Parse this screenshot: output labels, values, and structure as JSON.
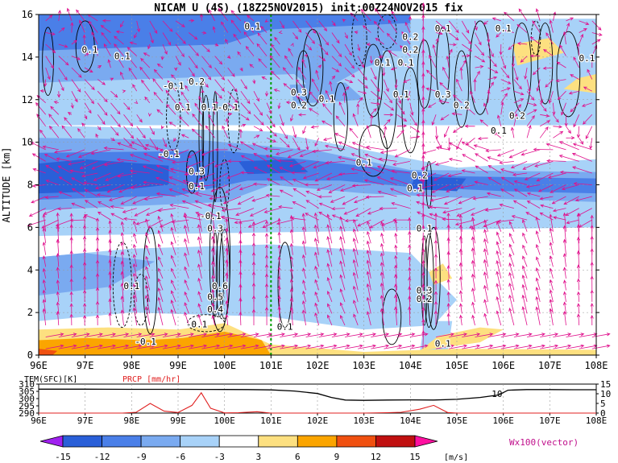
{
  "title": "NICAM U (4S) (18Z25NOV2015) init:00Z24NOV2015 fix",
  "colors": {
    "neg15": "#a020f0",
    "neg12": "#2a5fd8",
    "neg9": "#4a7fe8",
    "neg6": "#7aaaf0",
    "neg3": "#a8d2f8",
    "zero": "#ffffff",
    "pos3": "#fde080",
    "pos6": "#fba500",
    "pos9": "#f05010",
    "pos12": "#c01010",
    "pos15": "#ff10a0",
    "vector": "#e0108c",
    "contour": "#000000",
    "marker": "#00a000",
    "prcp": "#e02020"
  },
  "chart_data": [
    {
      "type": "heatmap",
      "title": "NICAM U (4S) (18Z25NOV2015) init:00Z24NOV2015 fix",
      "xlabel": "",
      "ylabel": "ALTITUDE [km]",
      "xlim": [
        96,
        108
      ],
      "ylim": [
        0,
        16
      ],
      "x_ticks": [
        "96E",
        "97E",
        "98E",
        "99E",
        "100E",
        "101E",
        "102E",
        "103E",
        "104E",
        "105E",
        "106E",
        "107E",
        "108E"
      ],
      "y_ticks": [
        "0",
        "2",
        "4",
        "6",
        "8",
        "10",
        "12",
        "14",
        "16"
      ],
      "marker_line_lon": 101.0,
      "contour_labels": [
        {
          "text": "0.1",
          "lon": 97.1,
          "alt": 14.2
        },
        {
          "text": "0.1",
          "lon": 97.8,
          "alt": 13.9
        },
        {
          "text": "-0.1",
          "lon": 98.9,
          "alt": 12.5
        },
        {
          "text": "0.2",
          "lon": 99.4,
          "alt": 12.7
        },
        {
          "text": "0.1",
          "lon": 99.1,
          "alt": 11.5
        },
        {
          "text": "0.1-0.1",
          "lon": 99.9,
          "alt": 11.5
        },
        {
          "text": "0.1",
          "lon": 100.6,
          "alt": 15.3
        },
        {
          "text": "0.3",
          "lon": 101.6,
          "alt": 12.2
        },
        {
          "text": "0.2",
          "lon": 101.6,
          "alt": 11.6
        },
        {
          "text": "0.1",
          "lon": 102.2,
          "alt": 11.9
        },
        {
          "text": "0.2",
          "lon": 104.0,
          "alt": 14.8
        },
        {
          "text": "0.2",
          "lon": 104.0,
          "alt": 14.2
        },
        {
          "text": "0.1",
          "lon": 103.4,
          "alt": 13.6
        },
        {
          "text": "0.1",
          "lon": 103.9,
          "alt": 13.6
        },
        {
          "text": "0.1",
          "lon": 103.8,
          "alt": 12.1
        },
        {
          "text": "0.3",
          "lon": 104.7,
          "alt": 12.1
        },
        {
          "text": "0.2",
          "lon": 105.1,
          "alt": 11.6
        },
        {
          "text": "0.1",
          "lon": 105.9,
          "alt": 10.4
        },
        {
          "text": "0.2",
          "lon": 106.3,
          "alt": 11.1
        },
        {
          "text": "0.1",
          "lon": 107.8,
          "alt": 13.8
        },
        {
          "text": "0.1",
          "lon": 106.0,
          "alt": 15.2
        },
        {
          "text": "0.1",
          "lon": 104.7,
          "alt": 15.2
        },
        {
          "text": "-0.1",
          "lon": 98.8,
          "alt": 9.3
        },
        {
          "text": "0.3",
          "lon": 99.4,
          "alt": 8.5
        },
        {
          "text": "0.1",
          "lon": 99.4,
          "alt": 7.8
        },
        {
          "text": "0.1",
          "lon": 103.0,
          "alt": 8.9
        },
        {
          "text": "0.2",
          "lon": 104.2,
          "alt": 8.3
        },
        {
          "text": "0.1",
          "lon": 104.1,
          "alt": 7.7
        },
        {
          "text": "-0.1",
          "lon": 99.7,
          "alt": 6.4
        },
        {
          "text": "0.3",
          "lon": 99.8,
          "alt": 5.8
        },
        {
          "text": "0.1",
          "lon": 104.3,
          "alt": 5.8
        },
        {
          "text": "0.1",
          "lon": 98.0,
          "alt": 3.1
        },
        {
          "text": "0.6",
          "lon": 99.9,
          "alt": 3.1
        },
        {
          "text": "0.5",
          "lon": 99.8,
          "alt": 2.6
        },
        {
          "text": "0.4",
          "lon": 99.8,
          "alt": 2.0
        },
        {
          "text": "-0.1",
          "lon": 99.4,
          "alt": 1.3
        },
        {
          "text": "0.3",
          "lon": 104.3,
          "alt": 2.9
        },
        {
          "text": "0.2",
          "lon": 104.3,
          "alt": 2.5
        },
        {
          "text": "0.1",
          "lon": 101.3,
          "alt": 1.2
        },
        {
          "text": "-0.1",
          "lon": 98.3,
          "alt": 0.5
        },
        {
          "text": "0.1",
          "lon": 104.7,
          "alt": 0.4
        }
      ]
    },
    {
      "type": "line",
      "xlim": [
        96,
        108
      ],
      "left_axis": {
        "label": "TEM(SFC)[K]",
        "ylim": [
          290,
          310
        ],
        "ticks": [
          "290",
          "295",
          "300",
          "305",
          "310"
        ]
      },
      "right_axis": {
        "label": "PRCP [mm/hr]",
        "ylim": [
          0,
          15
        ],
        "ticks": [
          "0",
          "5",
          "10",
          "15"
        ]
      },
      "annotation": "10",
      "series": [
        {
          "name": "TEM(SFC)[K]",
          "axis": "left",
          "x": [
            96,
            97,
            98,
            99,
            100,
            100.5,
            101,
            101.5,
            102,
            102.3,
            102.6,
            103,
            103.5,
            104,
            104.5,
            105,
            105.5,
            105.9,
            106.1,
            106.5,
            107,
            107.5,
            108
          ],
          "y": [
            306.5,
            306.5,
            306.4,
            306.4,
            306.3,
            306.2,
            306.0,
            305.2,
            303.5,
            300.8,
            299.0,
            298.8,
            299.0,
            299.1,
            299.0,
            299.5,
            300.8,
            302.5,
            305.8,
            306.2,
            306.2,
            306.1,
            306.1
          ]
        },
        {
          "name": "PRCP [mm/hr]",
          "axis": "right",
          "x": [
            96,
            97,
            97.8,
            98.1,
            98.4,
            98.7,
            99.0,
            99.3,
            99.5,
            99.7,
            100.0,
            100.3,
            100.7,
            101,
            101.5,
            102,
            102.5,
            103,
            103.5,
            103.8,
            104.2,
            104.5,
            104.8,
            105,
            106,
            107,
            108
          ],
          "y": [
            0,
            0,
            0,
            0.4,
            5.0,
            1.0,
            0.3,
            4.0,
            10.5,
            2.5,
            0.1,
            0.2,
            0.7,
            0,
            0,
            0,
            0,
            0,
            0.2,
            0.4,
            2.0,
            4.0,
            0.3,
            0,
            0,
            0,
            0
          ]
        }
      ]
    },
    {
      "type": "colorbar",
      "tick_labels": [
        "-15",
        "-12",
        "-9",
        "-6",
        "-3",
        "3",
        "6",
        "9",
        "12",
        "15"
      ],
      "unit_label": "[m/s]",
      "vector_label": "Wx100(vector)"
    }
  ]
}
